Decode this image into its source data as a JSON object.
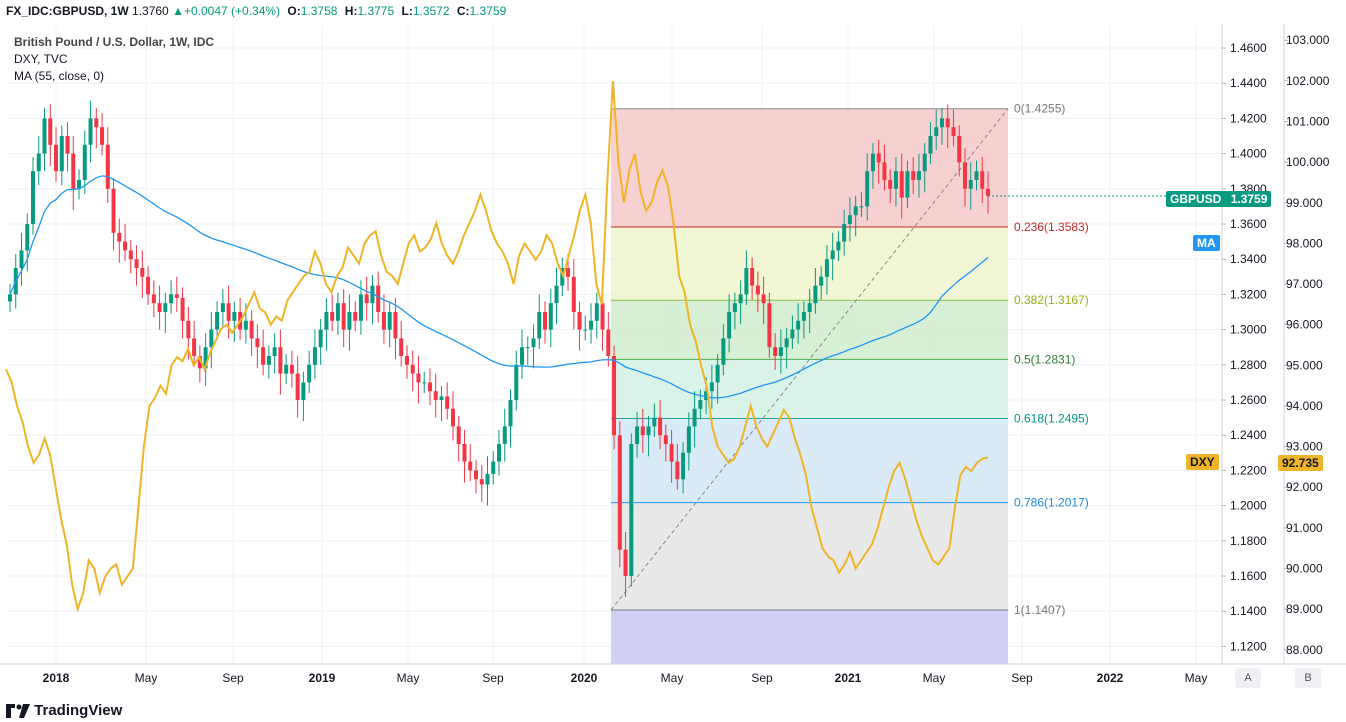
{
  "header": {
    "symbol": "FX_IDC:GBPUSD, 1W",
    "last": "1.3760",
    "change": "+0.0047 (+0.34%)",
    "open_label": "O:",
    "open": "1.3758",
    "high_label": "H:",
    "high": "1.3775",
    "low_label": "L:",
    "low": "1.3572",
    "close_label": "C:",
    "close": "1.3759",
    "up_arrow": "▲"
  },
  "legend": {
    "title": "British Pound / U.S. Dollar, 1W, IDC",
    "overlay": "DXY, TVC",
    "indicator": "MA (55, close, 0)"
  },
  "price_tags": {
    "gbpusd_label": "GBPUSD",
    "gbpusd_value": "1.3759",
    "ma_label": "MA",
    "dxy_label": "DXY",
    "dxy_value": "92.735"
  },
  "footer": {
    "brand": "TradingView"
  },
  "scale_buttons": {
    "a": "A",
    "b": "B"
  },
  "colors": {
    "up": "#089981",
    "down": "#f23645",
    "ma": "#2196f3",
    "dxy": "#f0b429",
    "grid": "#eef0f4"
  },
  "chart_data": {
    "type": "candlestick",
    "title": "British Pound / U.S. Dollar, 1W, IDC",
    "x_ticks": [
      "2018",
      "May",
      "Sep",
      "2019",
      "May",
      "Sep",
      "2020",
      "May",
      "Sep",
      "2021",
      "May",
      "Sep",
      "2022",
      "May"
    ],
    "right_axis_ticks": [
      "1.4600",
      "1.4400",
      "1.4200",
      "1.4000",
      "1.3800",
      "1.3600",
      "1.3400",
      "1.3200",
      "1.3000",
      "1.2800",
      "1.2600",
      "1.2400",
      "1.2200",
      "1.2000",
      "1.1800",
      "1.1600",
      "1.1400",
      "1.1200"
    ],
    "left_axis_ticks": [
      "103.000",
      "102.000",
      "101.000",
      "100.000",
      "99.000",
      "98.000",
      "97.000",
      "96.000",
      "95.000",
      "94.000",
      "93.000",
      "92.000",
      "91.000",
      "90.000",
      "89.000",
      "88.000"
    ],
    "ylim_gbpusd": [
      1.11,
      1.4725
    ],
    "ylim_dxy": [
      87.65,
      103.35
    ],
    "fibonacci": [
      {
        "level": "0",
        "price": 1.4255,
        "label": "0(1.4255)"
      },
      {
        "level": "0.236",
        "price": 1.3583,
        "label": "0.236(1.3583)"
      },
      {
        "level": "0.382",
        "price": 1.3167,
        "label": "0.382(1.3167)"
      },
      {
        "level": "0.5",
        "price": 1.2831,
        "label": "0.5(1.2831)"
      },
      {
        "level": "0.618",
        "price": 1.2495,
        "label": "0.618(1.2495)"
      },
      {
        "level": "0.786",
        "price": 1.2017,
        "label": "0.786(1.2017)"
      },
      {
        "level": "1",
        "price": 1.1407,
        "label": "1(1.1407)"
      }
    ],
    "fib_zone_colors": [
      "#f5c6c6",
      "#eef4c9",
      "#cdebc9",
      "#d1f0e2",
      "#cfe6f4",
      "#e3e3e3",
      "#ccccf5"
    ],
    "gbpusd_weekly_close": [
      1.32,
      1.335,
      1.345,
      1.36,
      1.39,
      1.4,
      1.42,
      1.405,
      1.39,
      1.41,
      1.4,
      1.38,
      1.385,
      1.405,
      1.42,
      1.415,
      1.405,
      1.38,
      1.355,
      1.35,
      1.345,
      1.34,
      1.335,
      1.33,
      1.32,
      1.315,
      1.31,
      1.315,
      1.32,
      1.318,
      1.305,
      1.295,
      1.285,
      1.278,
      1.29,
      1.3,
      1.31,
      1.315,
      1.305,
      1.31,
      1.3,
      1.305,
      1.295,
      1.29,
      1.28,
      1.285,
      1.29,
      1.275,
      1.28,
      1.275,
      1.26,
      1.27,
      1.28,
      1.29,
      1.3,
      1.31,
      1.305,
      1.315,
      1.3,
      1.31,
      1.305,
      1.32,
      1.315,
      1.325,
      1.31,
      1.3,
      1.31,
      1.295,
      1.285,
      1.28,
      1.275,
      1.27,
      1.27,
      1.265,
      1.26,
      1.262,
      1.255,
      1.245,
      1.235,
      1.225,
      1.22,
      1.215,
      1.212,
      1.218,
      1.225,
      1.235,
      1.245,
      1.26,
      1.28,
      1.29,
      1.29,
      1.295,
      1.31,
      1.3,
      1.315,
      1.325,
      1.335,
      1.33,
      1.31,
      1.3,
      1.3,
      1.305,
      1.315,
      1.3,
      1.285,
      1.24,
      1.175,
      1.16,
      1.235,
      1.245,
      1.24,
      1.245,
      1.25,
      1.24,
      1.235,
      1.225,
      1.215,
      1.23,
      1.245,
      1.255,
      1.26,
      1.265,
      1.27,
      1.28,
      1.295,
      1.31,
      1.315,
      1.32,
      1.335,
      1.325,
      1.32,
      1.315,
      1.29,
      1.285,
      1.29,
      1.295,
      1.3,
      1.305,
      1.31,
      1.315,
      1.325,
      1.33,
      1.34,
      1.345,
      1.35,
      1.36,
      1.365,
      1.37,
      1.37,
      1.39,
      1.4,
      1.395,
      1.385,
      1.38,
      1.39,
      1.375,
      1.39,
      1.385,
      1.39,
      1.4,
      1.41,
      1.415,
      1.42,
      1.415,
      1.41,
      1.395,
      1.38,
      1.385,
      1.39,
      1.38,
      1.376
    ],
    "dxy_weekly": [
      94.9,
      94.6,
      94.0,
      93.6,
      93.0,
      92.6,
      92.8,
      93.2,
      92.8,
      92.0,
      91.2,
      90.6,
      89.6,
      89.0,
      89.4,
      90.2,
      90.0,
      89.4,
      89.8,
      90.0,
      90.1,
      89.6,
      89.8,
      90.0,
      91.5,
      93.0,
      94.0,
      94.2,
      94.5,
      94.3,
      95.0,
      95.2,
      95.1,
      95.4,
      95.0,
      95.2,
      94.9,
      95.3,
      95.6,
      95.9,
      96.0,
      95.8,
      96.0,
      96.2,
      96.5,
      96.8,
      96.4,
      96.3,
      96.0,
      96.2,
      96.1,
      96.6,
      96.8,
      97.0,
      97.2,
      97.3,
      97.8,
      97.5,
      97.0,
      96.8,
      97.2,
      97.4,
      97.9,
      97.7,
      97.5,
      98.0,
      98.2,
      98.3,
      97.7,
      97.3,
      97.2,
      97.0,
      97.5,
      98.0,
      98.2,
      97.8,
      97.9,
      98.1,
      98.5,
      98.0,
      97.7,
      97.5,
      97.8,
      98.2,
      98.5,
      98.8,
      99.2,
      98.8,
      98.3,
      98.0,
      97.8,
      97.5,
      97.0,
      97.7,
      98.0,
      97.8,
      97.6,
      97.8,
      98.2,
      98.0,
      97.5,
      97.2,
      97.7,
      98.2,
      98.8,
      99.2,
      98.5,
      97.0,
      96.5,
      99.5,
      102.0,
      100.0,
      99.0,
      99.8,
      100.2,
      99.3,
      98.8,
      99.0,
      99.5,
      99.8,
      99.4,
      98.5,
      97.2,
      96.8,
      96.0,
      95.6,
      95.0,
      94.5,
      93.5,
      93.0,
      92.8,
      92.6,
      92.7,
      93.0,
      93.5,
      94.0,
      93.5,
      93.2,
      93.0,
      93.3,
      93.6,
      93.9,
      93.7,
      93.2,
      92.8,
      92.3,
      91.5,
      91.0,
      90.5,
      90.3,
      90.2,
      89.9,
      90.1,
      90.4,
      90.0,
      90.2,
      90.4,
      90.6,
      91.0,
      91.5,
      92.0,
      92.4,
      92.6,
      92.2,
      91.7,
      91.2,
      90.8,
      90.5,
      90.2,
      90.1,
      90.3,
      90.5,
      91.5,
      92.3,
      92.5,
      92.4,
      92.6,
      92.7,
      92.735
    ],
    "ma_55": "computed from gbpusd_weekly_close"
  }
}
